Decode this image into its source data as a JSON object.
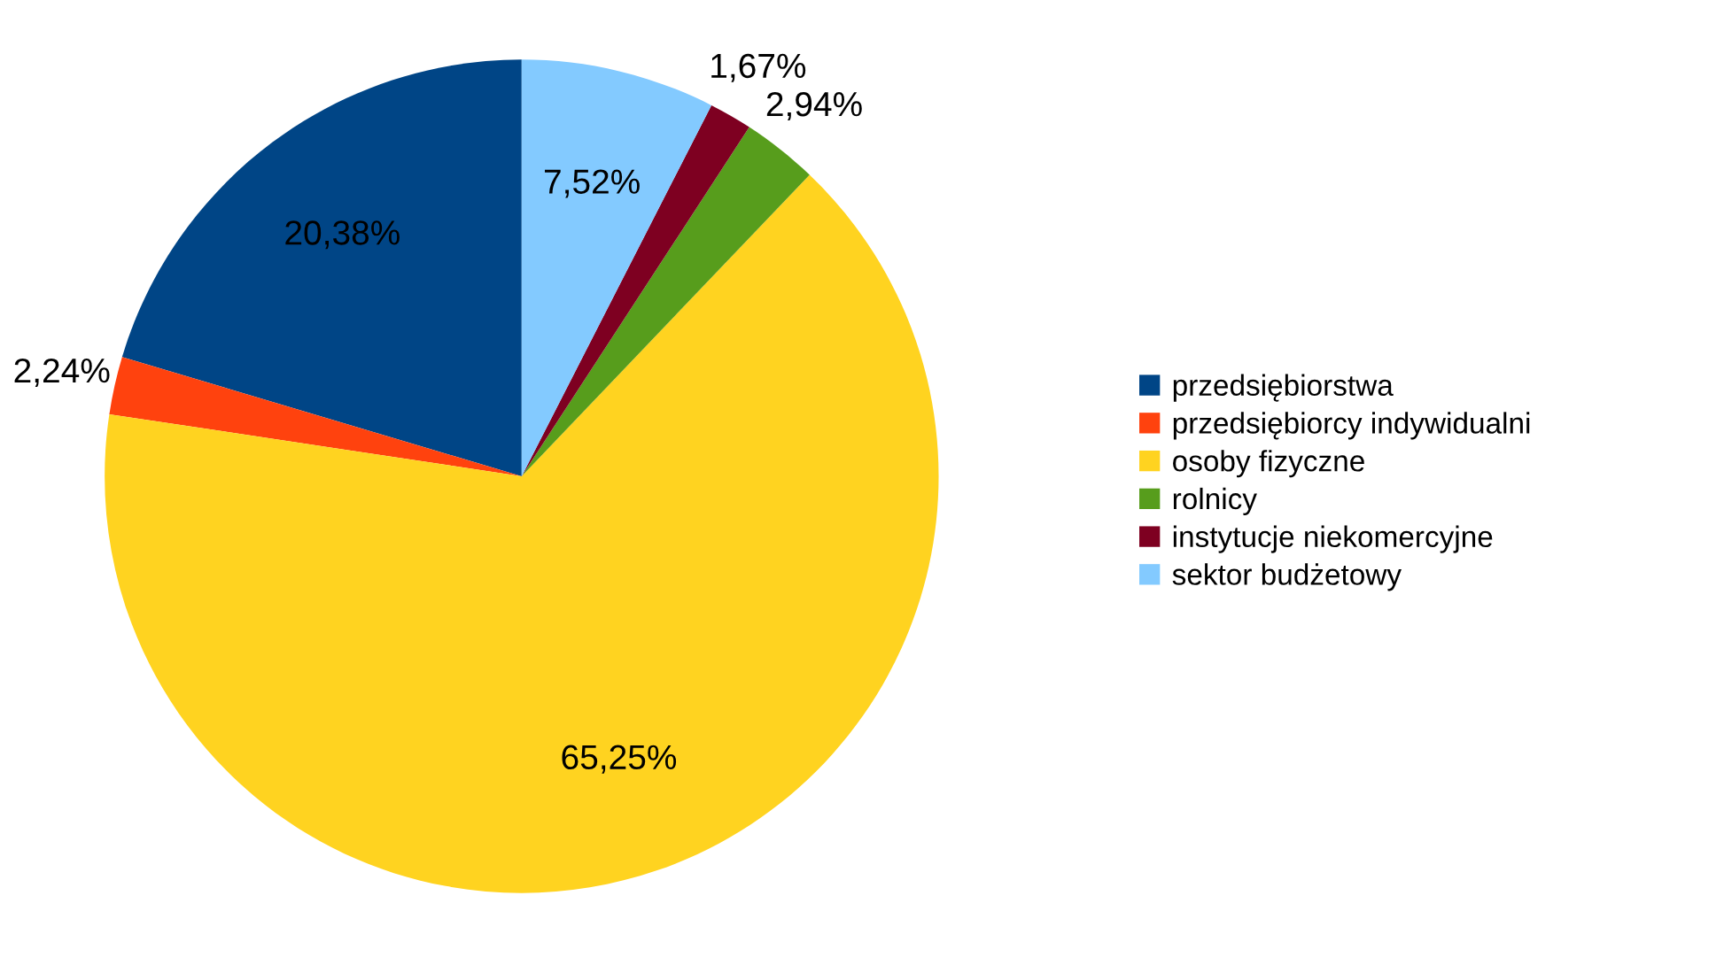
{
  "chart_data": {
    "type": "pie",
    "categories": [
      "przedsiębiorstwa",
      "przedsiębiorcy indywidualni",
      "osoby fizyczne",
      "rolnicy",
      "instytucje niekomercyjne",
      "sektor budżetowy"
    ],
    "values": [
      20.38,
      2.24,
      65.25,
      2.94,
      1.67,
      7.52
    ],
    "colors": [
      "#004586",
      "#ff420e",
      "#ffd320",
      "#579d1c",
      "#7e0021",
      "#83caff"
    ],
    "value_labels": [
      "20,38%",
      "2,24%",
      "65,25%",
      "2,94%",
      "1,67%",
      "7,52%"
    ],
    "legend": "right"
  }
}
